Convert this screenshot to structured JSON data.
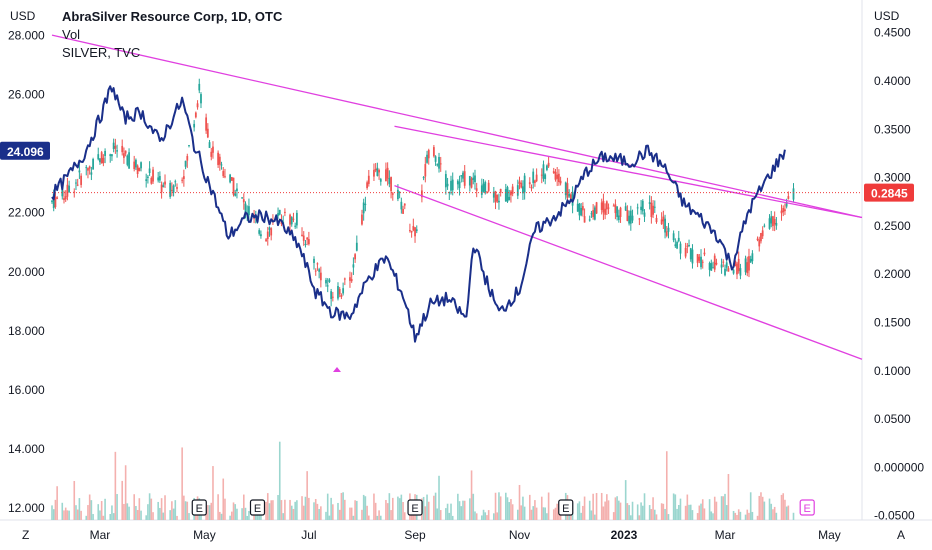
{
  "legend": {
    "symbol_title": "AbraSilver Resource Corp, 1D, OTC",
    "volume_label": "Vol",
    "overlay_label": "SILVER, TVC"
  },
  "axes": {
    "left_unit": "USD",
    "right_unit": "USD",
    "left_ticks": [
      "28.000",
      "26.000",
      "24.000",
      "22.000",
      "20.000",
      "18.000",
      "16.000",
      "14.000",
      "12.000"
    ],
    "right_ticks": [
      "0.4500",
      "0.4000",
      "0.3500",
      "0.3000",
      "0.2500",
      "0.2000",
      "0.1500",
      "0.1000",
      "0.0500",
      "0.000000",
      "-0.0500"
    ],
    "x_ticks": [
      "Mar",
      "May",
      "Jul",
      "Sep",
      "Nov",
      "2023",
      "Mar",
      "May"
    ]
  },
  "badges": {
    "silver_last": "24.096",
    "price_last": "0.2845"
  },
  "earnings_marker_label": "E",
  "corner": {
    "left": "Z",
    "right": "A"
  },
  "colors": {
    "up": "#26a69a",
    "down": "#ef5350",
    "silver_line": "#1a2f8a",
    "trendline": "#e040e0",
    "price_badge": "#ef3b3b",
    "silver_badge": "#1a2f8a"
  },
  "chart_data": {
    "type": "candlestick",
    "title": "AbraSilver Resource Corp, 1D, OTC",
    "x_range": [
      "2022-02-01",
      "2023-05-20"
    ],
    "ylim_price": [
      -0.0544,
      0.4839
    ],
    "ylim_silver": [
      11.6,
      29.2
    ],
    "price_series_last": 0.2845,
    "silver_series_last": 24.096,
    "price_path": [
      [
        "2022-02-01",
        0.275
      ],
      [
        "2022-02-10",
        0.285
      ],
      [
        "2022-02-20",
        0.305
      ],
      [
        "2022-03-01",
        0.32
      ],
      [
        "2022-03-10",
        0.33
      ],
      [
        "2022-03-20",
        0.315
      ],
      [
        "2022-04-01",
        0.3
      ],
      [
        "2022-04-10",
        0.285
      ],
      [
        "2022-04-20",
        0.31
      ],
      [
        "2022-04-28",
        0.39
      ],
      [
        "2022-05-05",
        0.33
      ],
      [
        "2022-05-15",
        0.3
      ],
      [
        "2022-05-25",
        0.27
      ],
      [
        "2022-06-05",
        0.24
      ],
      [
        "2022-06-15",
        0.26
      ],
      [
        "2022-06-25",
        0.255
      ],
      [
        "2022-07-05",
        0.21
      ],
      [
        "2022-07-15",
        0.18
      ],
      [
        "2022-07-25",
        0.19
      ],
      [
        "2022-08-05",
        0.3
      ],
      [
        "2022-08-15",
        0.305
      ],
      [
        "2022-08-25",
        0.27
      ],
      [
        "2022-09-01",
        0.24
      ],
      [
        "2022-09-10",
        0.34
      ],
      [
        "2022-09-20",
        0.29
      ],
      [
        "2022-10-01",
        0.3
      ],
      [
        "2022-10-10",
        0.29
      ],
      [
        "2022-10-20",
        0.28
      ],
      [
        "2022-11-01",
        0.29
      ],
      [
        "2022-11-10",
        0.3
      ],
      [
        "2022-11-20",
        0.31
      ],
      [
        "2022-12-01",
        0.28
      ],
      [
        "2022-12-10",
        0.26
      ],
      [
        "2022-12-20",
        0.27
      ],
      [
        "2023-01-05",
        0.26
      ],
      [
        "2023-01-15",
        0.27
      ],
      [
        "2023-01-25",
        0.25
      ],
      [
        "2023-02-05",
        0.225
      ],
      [
        "2023-02-15",
        0.215
      ],
      [
        "2023-02-25",
        0.21
      ],
      [
        "2023-03-05",
        0.205
      ],
      [
        "2023-03-15",
        0.21
      ],
      [
        "2023-03-25",
        0.25
      ],
      [
        "2023-04-05",
        0.265
      ],
      [
        "2023-04-10",
        0.2845
      ]
    ],
    "silver_path": [
      [
        "2022-02-01",
        22.6
      ],
      [
        "2022-02-10",
        23.2
      ],
      [
        "2022-02-20",
        24.0
      ],
      [
        "2022-03-01",
        25.2
      ],
      [
        "2022-03-08",
        26.3
      ],
      [
        "2022-03-15",
        25.2
      ],
      [
        "2022-03-25",
        25.4
      ],
      [
        "2022-04-05",
        24.4
      ],
      [
        "2022-04-18",
        25.8
      ],
      [
        "2022-04-25",
        24.3
      ],
      [
        "2022-05-05",
        22.8
      ],
      [
        "2022-05-15",
        21.2
      ],
      [
        "2022-05-25",
        21.8
      ],
      [
        "2022-06-05",
        21.9
      ],
      [
        "2022-06-15",
        21.6
      ],
      [
        "2022-06-25",
        20.9
      ],
      [
        "2022-07-05",
        19.3
      ],
      [
        "2022-07-15",
        18.6
      ],
      [
        "2022-07-25",
        18.5
      ],
      [
        "2022-08-05",
        19.8
      ],
      [
        "2022-08-15",
        20.5
      ],
      [
        "2022-08-25",
        19.2
      ],
      [
        "2022-09-01",
        17.8
      ],
      [
        "2022-09-10",
        18.9
      ],
      [
        "2022-09-20",
        19.1
      ],
      [
        "2022-10-01",
        18.4
      ],
      [
        "2022-10-05",
        21.0
      ],
      [
        "2022-10-12",
        19.8
      ],
      [
        "2022-10-20",
        18.6
      ],
      [
        "2022-11-01",
        19.4
      ],
      [
        "2022-11-10",
        21.4
      ],
      [
        "2022-11-20",
        21.8
      ],
      [
        "2022-12-01",
        22.4
      ],
      [
        "2022-12-10",
        23.4
      ],
      [
        "2022-12-20",
        23.9
      ],
      [
        "2023-01-05",
        23.7
      ],
      [
        "2023-01-15",
        24.1
      ],
      [
        "2023-01-25",
        23.5
      ],
      [
        "2023-02-05",
        22.3
      ],
      [
        "2023-02-15",
        21.8
      ],
      [
        "2023-02-25",
        21.2
      ],
      [
        "2023-03-05",
        20.2
      ],
      [
        "2023-03-15",
        22.1
      ],
      [
        "2023-03-25",
        23.1
      ],
      [
        "2023-04-05",
        24.096
      ]
    ],
    "volume_range": [
      0.0,
      0.08
    ],
    "trendlines": [
      {
        "from": [
          "2022-02-01",
          0.4475
        ],
        "to": [
          "2023-05-20",
          0.2587
        ]
      },
      {
        "from": [
          "2022-08-20",
          0.3532
        ],
        "to": [
          "2023-05-20",
          0.2587
        ]
      },
      {
        "from": [
          "2022-08-20",
          0.2917
        ],
        "to": [
          "2023-05-20",
          0.112
        ]
      }
    ],
    "earnings_dates": [
      "2022-04-28",
      "2022-06-01",
      "2022-09-01",
      "2022-11-28",
      "2023-04-18"
    ]
  }
}
